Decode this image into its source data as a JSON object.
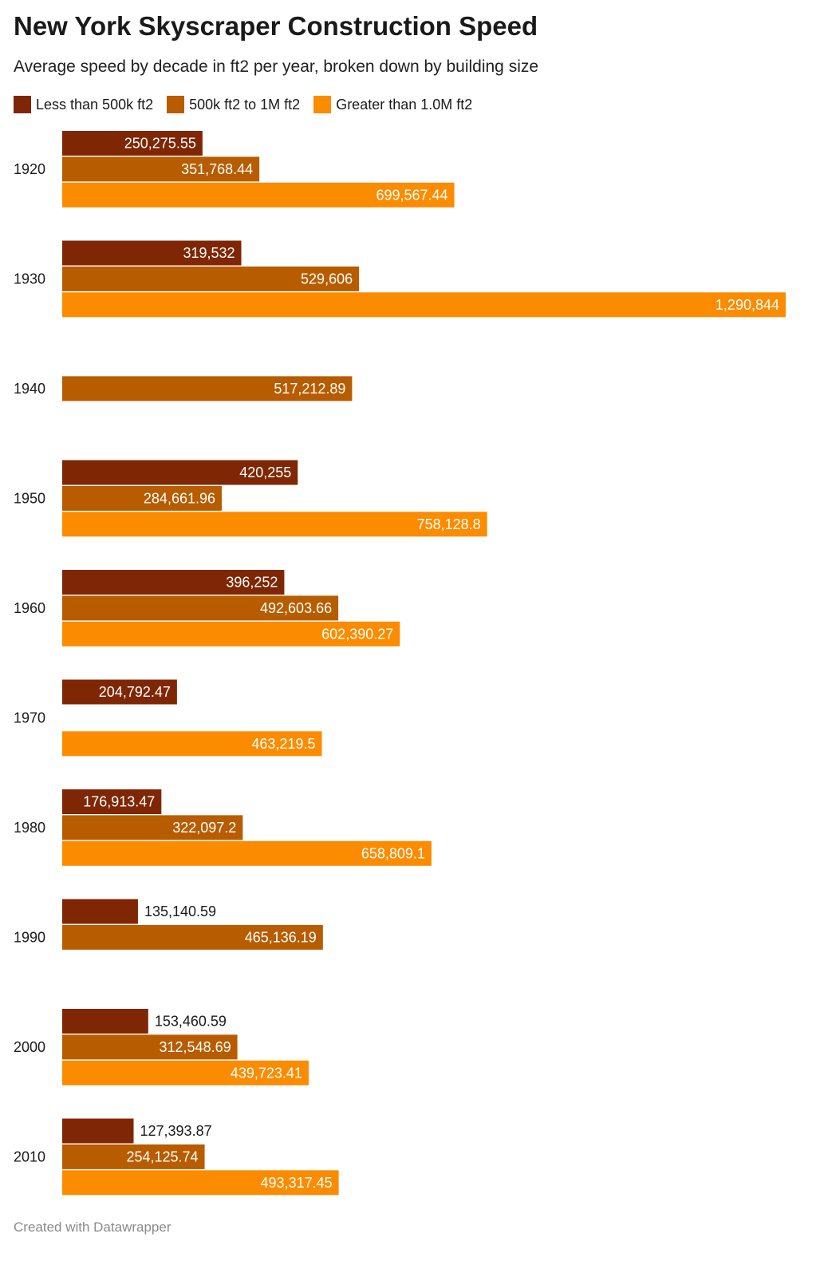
{
  "header": {
    "title": "New York Skyscraper Construction Speed",
    "subtitle": "Average speed by decade in ft2 per year, broken down by building size"
  },
  "footer": {
    "credit": "Created with Datawrapper"
  },
  "chart_data": {
    "type": "bar",
    "orientation": "horizontal",
    "title": "New York Skyscraper Construction Speed",
    "subtitle": "Average speed by decade in ft2 per year, broken down by building size",
    "categories": [
      "1920",
      "1930",
      "1940",
      "1950",
      "1960",
      "1970",
      "1980",
      "1990",
      "2000",
      "2010"
    ],
    "series": [
      {
        "name": "Less than 500k ft2",
        "color": "#7f2704",
        "values": [
          250275.55,
          319532,
          null,
          420255,
          396252,
          204792.47,
          176913.47,
          135140.59,
          153460.59,
          127393.87
        ],
        "labels": [
          "250,275.55",
          "319,532",
          "",
          "420,255",
          "396,252",
          "204,792.47",
          "176,913.47",
          "135,140.59",
          "153,460.59",
          "127,393.87"
        ]
      },
      {
        "name": "500k ft2 to 1M ft2",
        "color": "#b85c00",
        "values": [
          351768.44,
          529606,
          517212.89,
          284661.96,
          492603.66,
          null,
          322097.2,
          465136.19,
          312548.69,
          254125.74
        ],
        "labels": [
          "351,768.44",
          "529,606",
          "517,212.89",
          "284,661.96",
          "492,603.66",
          "",
          "322,097.2",
          "465,136.19",
          "312,548.69",
          "254,125.74"
        ]
      },
      {
        "name": "Greater than 1.0M ft2",
        "color": "#fb8c00",
        "values": [
          699567.44,
          1290844,
          null,
          758128.8,
          602390.27,
          463219.5,
          658809.1,
          null,
          439723.41,
          493317.45
        ],
        "labels": [
          "699,567.44",
          "1,290,844",
          "",
          "758,128.8",
          "602,390.27",
          "463,219.5",
          "658,809.1",
          "",
          "439,723.41",
          "493,317.45"
        ]
      }
    ],
    "xlim": [
      0,
      1290844
    ],
    "grid": false,
    "legend_position": "top-left"
  }
}
